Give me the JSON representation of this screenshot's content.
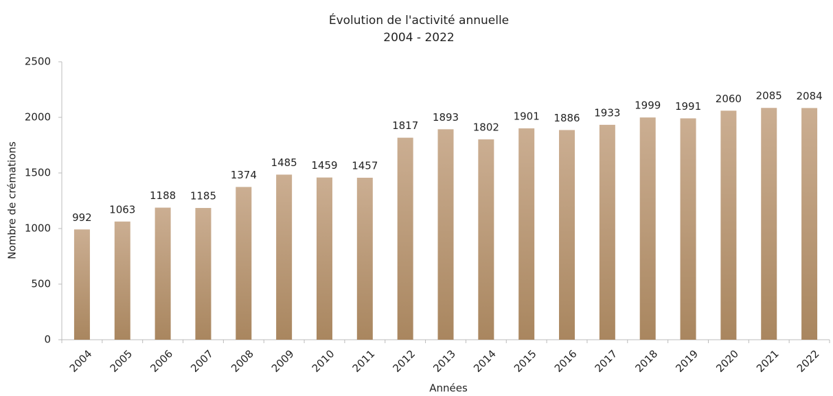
{
  "chart_data": {
    "type": "bar",
    "title": "Évolution de l'activité annuelle",
    "subtitle": "2004 - 2022",
    "y_label": "Nombre de crémations",
    "x_label": "Années",
    "categories": [
      "2004",
      "2005",
      "2006",
      "2007",
      "2008",
      "2009",
      "2010",
      "2011",
      "2012",
      "2013",
      "2014",
      "2015",
      "2016",
      "2017",
      "2018",
      "2019",
      "2020",
      "2021",
      "2022"
    ],
    "values": [
      992,
      1063,
      1188,
      1185,
      1374,
      1485,
      1459,
      1457,
      1817,
      1893,
      1802,
      1901,
      1886,
      1933,
      1999,
      1991,
      2060,
      2085,
      2084
    ],
    "color": "#a9865f",
    "ylim": [
      0,
      2500
    ],
    "yticks": [
      0,
      500,
      1000,
      1500,
      2000,
      2500
    ],
    "grid": false,
    "data_labels": true
  }
}
